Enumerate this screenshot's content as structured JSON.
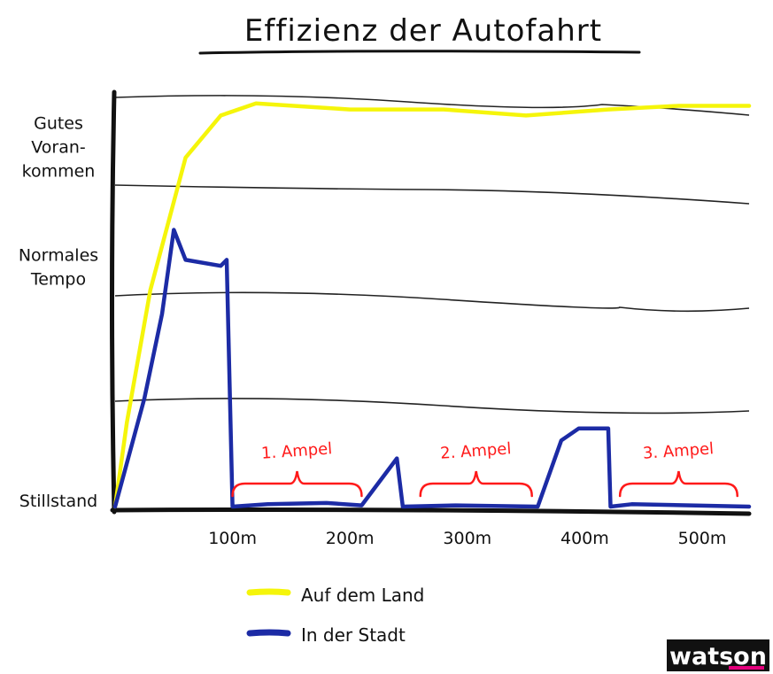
{
  "chart_data": {
    "type": "line",
    "title": "Effizienz der Autofahrt",
    "y_tick_labels": [
      {
        "lines": [
          "Gutes",
          "Voran-",
          "kommen"
        ],
        "level": 3
      },
      {
        "lines": [
          "Normales",
          "Tempo"
        ],
        "level": 2
      },
      {
        "lines": [
          "Stillstand"
        ],
        "level": 0
      }
    ],
    "x_tick_labels": [
      {
        "label": "100m",
        "value": 100
      },
      {
        "label": "200m",
        "value": 200
      },
      {
        "label": "300m",
        "value": 300
      },
      {
        "label": "400m",
        "value": 400
      },
      {
        "label": "500m",
        "value": 500
      }
    ],
    "xlim": [
      0,
      540
    ],
    "ylim": [
      0,
      3.4
    ],
    "grid": true,
    "legend_position": "bottom",
    "series": [
      {
        "name": "Auf dem Land",
        "color": "#f5f50a",
        "points": [
          [
            0,
            0
          ],
          [
            10,
            0.7
          ],
          [
            30,
            1.8
          ],
          [
            60,
            2.9
          ],
          [
            90,
            3.25
          ],
          [
            120,
            3.35
          ],
          [
            200,
            3.3
          ],
          [
            280,
            3.3
          ],
          [
            350,
            3.25
          ],
          [
            420,
            3.3
          ],
          [
            480,
            3.33
          ],
          [
            540,
            3.33
          ]
        ]
      },
      {
        "name": "In der Stadt",
        "color": "#1c2ba5",
        "points": [
          [
            0,
            0
          ],
          [
            25,
            0.9
          ],
          [
            40,
            1.6
          ],
          [
            50,
            2.3
          ],
          [
            60,
            2.05
          ],
          [
            90,
            2.0
          ],
          [
            95,
            2.05
          ],
          [
            100,
            0
          ],
          [
            130,
            0.02
          ],
          [
            180,
            0.03
          ],
          [
            210,
            0.01
          ],
          [
            240,
            0.4
          ],
          [
            245,
            0
          ],
          [
            290,
            0.01
          ],
          [
            360,
            0
          ],
          [
            380,
            0.55
          ],
          [
            395,
            0.65
          ],
          [
            420,
            0.65
          ],
          [
            422,
            0
          ],
          [
            440,
            0.02
          ],
          [
            540,
            0
          ]
        ]
      }
    ],
    "annotations": [
      {
        "label": "1. Ampel",
        "color": "#ff1a1a",
        "x_range": [
          100,
          210
        ]
      },
      {
        "label": "2. Ampel",
        "color": "#ff1a1a",
        "x_range": [
          260,
          355
        ]
      },
      {
        "label": "3. Ampel",
        "color": "#ff1a1a",
        "x_range": [
          430,
          530
        ]
      }
    ]
  },
  "logo": {
    "text": "watson",
    "accent": "#e5007d"
  }
}
